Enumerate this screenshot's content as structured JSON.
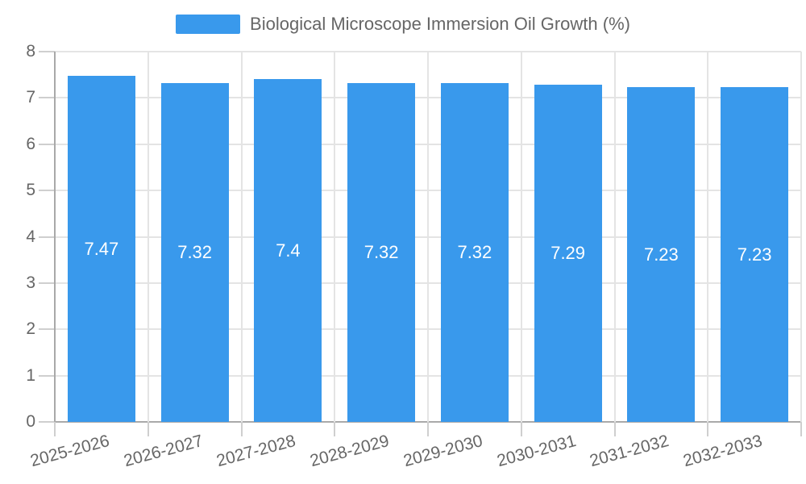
{
  "legend": {
    "label": "Biological Microscope Immersion Oil Growth (%)"
  },
  "chart_data": {
    "type": "bar",
    "title": "Biological Microscope Immersion Oil Growth (%)",
    "categories": [
      "2025-2026",
      "2026-2027",
      "2027-2028",
      "2028-2029",
      "2029-2030",
      "2030-2031",
      "2031-2032",
      "2032-2033"
    ],
    "series": [
      {
        "name": "Biological Microscope Immersion Oil Growth (%)",
        "values": [
          7.47,
          7.32,
          7.4,
          7.32,
          7.32,
          7.29,
          7.23,
          7.23
        ]
      }
    ],
    "value_labels": [
      "7.47",
      "7.32",
      "7.4",
      "7.32",
      "7.32",
      "7.29",
      "7.23",
      "7.23"
    ],
    "xlabel": "",
    "ylabel": "",
    "ylim": [
      0,
      8
    ],
    "yticks": [
      0,
      1,
      2,
      3,
      4,
      5,
      6,
      7,
      8
    ],
    "grid": true,
    "legend_position": "top",
    "colors": {
      "bar": "#3999EC",
      "bar_label": "#FFFFFF",
      "grid": "#E4E4E4",
      "axis": "#A9A9A9",
      "tick": "#CFCFCF",
      "text": "#666666",
      "background": "#FFFFFF"
    }
  }
}
